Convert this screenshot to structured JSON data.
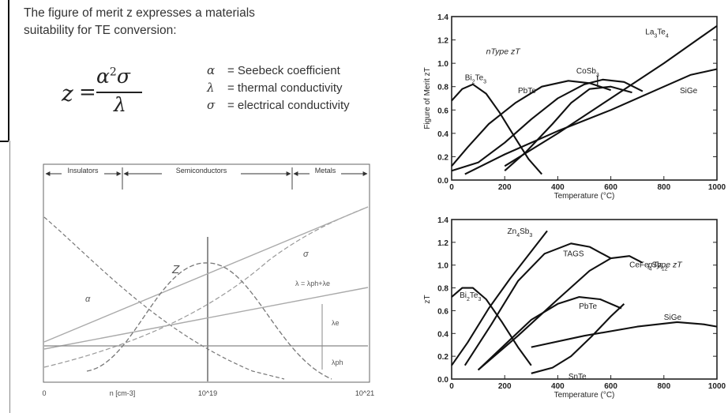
{
  "intro": {
    "line1": "The figure of merit z expresses a materials",
    "line2": "suitability for TE conversion:"
  },
  "formula": {
    "lhs": "z",
    "eq": "=",
    "numerator": "α",
    "numerator_exp": "2",
    "numerator_rest": "σ",
    "denominator": "λ"
  },
  "definitions": [
    {
      "symbol": "α",
      "text": "= Seebeck coefficient"
    },
    {
      "symbol": "λ",
      "text": "= thermal conductivity"
    },
    {
      "symbol": "σ",
      "text": "= electrical conductivity"
    }
  ],
  "schematic": {
    "regions": [
      "Insulators",
      "Semiconductors",
      "Metals"
    ],
    "labels": {
      "alpha": "α",
      "sigma": "σ",
      "z": "Z",
      "lambda_total": "λ = λph+λe",
      "lambda_e": "λe",
      "lambda_ph": "λph"
    },
    "x_labels": [
      "0",
      "n [cm-3]",
      "10^19",
      "10^21"
    ]
  },
  "chart_data": [
    {
      "type": "line",
      "title": "n-Type zT",
      "xlabel": "Temperature (°C)",
      "ylabel": "Figure of Merit zT",
      "xlim": [
        0,
        1000
      ],
      "ylim": [
        0,
        1.4
      ],
      "xticks": [
        0,
        200,
        400,
        600,
        800,
        1000
      ],
      "yticks": [
        0.0,
        0.2,
        0.4,
        0.6,
        0.8,
        1.0,
        1.2,
        1.4
      ],
      "series": [
        {
          "name": "Bi2Te3",
          "points": [
            [
              0,
              0.68
            ],
            [
              40,
              0.78
            ],
            [
              80,
              0.82
            ],
            [
              130,
              0.74
            ],
            [
              180,
              0.58
            ],
            [
              240,
              0.36
            ],
            [
              290,
              0.18
            ],
            [
              340,
              0.05
            ]
          ]
        },
        {
          "name": "PbTe",
          "points": [
            [
              0,
              0.12
            ],
            [
              60,
              0.28
            ],
            [
              140,
              0.48
            ],
            [
              240,
              0.66
            ],
            [
              340,
              0.8
            ],
            [
              440,
              0.85
            ],
            [
              520,
              0.83
            ],
            [
              600,
              0.77
            ]
          ]
        },
        {
          "name": "CoSb3",
          "points": [
            [
              0,
              0.08
            ],
            [
              100,
              0.15
            ],
            [
              200,
              0.32
            ],
            [
              300,
              0.52
            ],
            [
              400,
              0.7
            ],
            [
              500,
              0.82
            ],
            [
              570,
              0.86
            ],
            [
              650,
              0.84
            ],
            [
              720,
              0.76
            ]
          ]
        },
        {
          "name": "La3Te4",
          "points": [
            [
              200,
              0.12
            ],
            [
              400,
              0.4
            ],
            [
              600,
              0.7
            ],
            [
              800,
              1.0
            ],
            [
              1000,
              1.32
            ]
          ]
        },
        {
          "name": "SiGe",
          "points": [
            [
              50,
              0.05
            ],
            [
              200,
              0.22
            ],
            [
              400,
              0.42
            ],
            [
              600,
              0.6
            ],
            [
              800,
              0.8
            ],
            [
              900,
              0.9
            ],
            [
              1000,
              0.95
            ]
          ]
        },
        {
          "name": "",
          "points": [
            [
              200,
              0.08
            ],
            [
              280,
              0.24
            ],
            [
              380,
              0.48
            ],
            [
              450,
              0.66
            ],
            [
              520,
              0.78
            ],
            [
              600,
              0.8
            ],
            [
              680,
              0.75
            ]
          ]
        }
      ],
      "annotations": [
        "n-Type zT",
        "Bi2Te3",
        "PbTe",
        "CoSb3",
        "La3Te4",
        "SiGe"
      ]
    },
    {
      "type": "line",
      "title": "p-Type zT",
      "xlabel": "Temperature (°C)",
      "ylabel": "zT",
      "xlim": [
        0,
        1000
      ],
      "ylim": [
        0,
        1.4
      ],
      "xticks": [
        0,
        200,
        400,
        600,
        800,
        1000
      ],
      "yticks": [
        0.0,
        0.2,
        0.4,
        0.6,
        0.8,
        1.0,
        1.2,
        1.4
      ],
      "series": [
        {
          "name": "Bi2Te3",
          "points": [
            [
              0,
              0.72
            ],
            [
              40,
              0.8
            ],
            [
              80,
              0.8
            ],
            [
              130,
              0.7
            ],
            [
              190,
              0.5
            ],
            [
              250,
              0.28
            ],
            [
              300,
              0.12
            ]
          ]
        },
        {
          "name": "Zn4Sb3",
          "points": [
            [
              0,
              0.12
            ],
            [
              60,
              0.32
            ],
            [
              140,
              0.62
            ],
            [
              220,
              0.88
            ],
            [
              300,
              1.12
            ],
            [
              360,
              1.3
            ]
          ]
        },
        {
          "name": "TAGS",
          "points": [
            [
              50,
              0.12
            ],
            [
              150,
              0.48
            ],
            [
              250,
              0.86
            ],
            [
              350,
              1.1
            ],
            [
              450,
              1.19
            ],
            [
              520,
              1.16
            ],
            [
              600,
              1.06
            ]
          ]
        },
        {
          "name": "CeFe4Sb12",
          "points": [
            [
              100,
              0.08
            ],
            [
              250,
              0.38
            ],
            [
              400,
              0.7
            ],
            [
              520,
              0.95
            ],
            [
              600,
              1.06
            ],
            [
              670,
              1.08
            ],
            [
              720,
              1.02
            ]
          ]
        },
        {
          "name": "PbTe",
          "points": [
            [
              100,
              0.08
            ],
            [
              200,
              0.3
            ],
            [
              300,
              0.52
            ],
            [
              400,
              0.66
            ],
            [
              480,
              0.72
            ],
            [
              560,
              0.7
            ],
            [
              640,
              0.62
            ]
          ]
        },
        {
          "name": "SnTe",
          "points": [
            [
              300,
              0.05
            ],
            [
              380,
              0.1
            ],
            [
              450,
              0.2
            ],
            [
              530,
              0.38
            ],
            [
              600,
              0.55
            ],
            [
              650,
              0.66
            ]
          ]
        },
        {
          "name": "SiGe",
          "points": [
            [
              300,
              0.28
            ],
            [
              500,
              0.38
            ],
            [
              700,
              0.46
            ],
            [
              850,
              0.5
            ],
            [
              950,
              0.48
            ],
            [
              1000,
              0.46
            ]
          ]
        }
      ],
      "annotations": [
        "p-Type zT",
        "Zn4Sb3",
        "TAGS",
        "CeFe4Sb12",
        "Bi2Te3",
        "PbTe",
        "SiGe",
        "SnTe"
      ]
    }
  ]
}
